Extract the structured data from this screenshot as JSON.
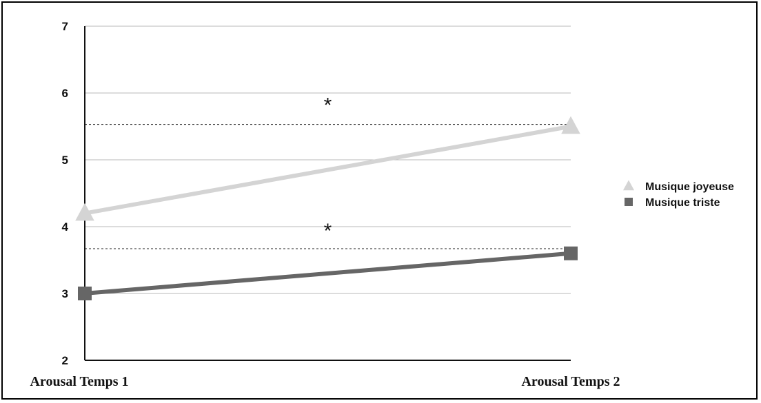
{
  "chart_data": {
    "type": "line",
    "title": "",
    "xlabel": "",
    "ylabel": "",
    "categories": [
      "Arousal Temps 1",
      "Arousal Temps 2"
    ],
    "ylim": [
      2,
      7
    ],
    "yticks": [
      2,
      3,
      4,
      5,
      6,
      7
    ],
    "grid": true,
    "legend_position": "right",
    "series": [
      {
        "name": "Musique joyeuse",
        "values": [
          4.2,
          5.5
        ],
        "color": "#d4d4d4",
        "marker": "triangle"
      },
      {
        "name": "Musique triste",
        "values": [
          3.0,
          3.6
        ],
        "color": "#666666",
        "marker": "square"
      }
    ],
    "reference_lines": [
      5.53,
      3.67
    ],
    "annotations": [
      {
        "text": "*",
        "x": 0.5,
        "y": 5.85
      },
      {
        "text": "*",
        "x": 0.5,
        "y": 3.97
      }
    ]
  }
}
